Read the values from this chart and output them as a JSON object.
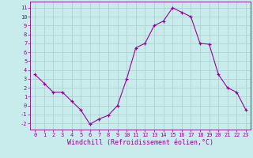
{
  "x": [
    0,
    1,
    2,
    3,
    4,
    5,
    6,
    7,
    8,
    9,
    10,
    11,
    12,
    13,
    14,
    15,
    16,
    17,
    18,
    19,
    20,
    21,
    22,
    23
  ],
  "y": [
    3.5,
    2.5,
    1.5,
    1.5,
    0.5,
    -0.5,
    -2.1,
    -1.5,
    -1.1,
    0.0,
    3.0,
    6.5,
    7.0,
    9.0,
    9.5,
    11.0,
    10.5,
    10.0,
    7.0,
    6.9,
    3.5,
    2.0,
    1.5,
    -0.5
  ],
  "line_color": "#990099",
  "marker_color": "#990099",
  "bg_color": "#c8ecec",
  "grid_color": "#aacccc",
  "xlabel": "Windchill (Refroidissement éolien,°C)",
  "xlabel_color": "#990099",
  "xlim": [
    -0.5,
    23.5
  ],
  "ylim": [
    -2.7,
    11.7
  ],
  "yticks": [
    -2,
    -1,
    0,
    1,
    2,
    3,
    4,
    5,
    6,
    7,
    8,
    9,
    10,
    11
  ],
  "xticks": [
    0,
    1,
    2,
    3,
    4,
    5,
    6,
    7,
    8,
    9,
    10,
    11,
    12,
    13,
    14,
    15,
    16,
    17,
    18,
    19,
    20,
    21,
    22,
    23
  ],
  "tick_color": "#990099",
  "tick_fontsize": 5.0,
  "xlabel_fontsize": 6.0,
  "border_color": "#880088"
}
